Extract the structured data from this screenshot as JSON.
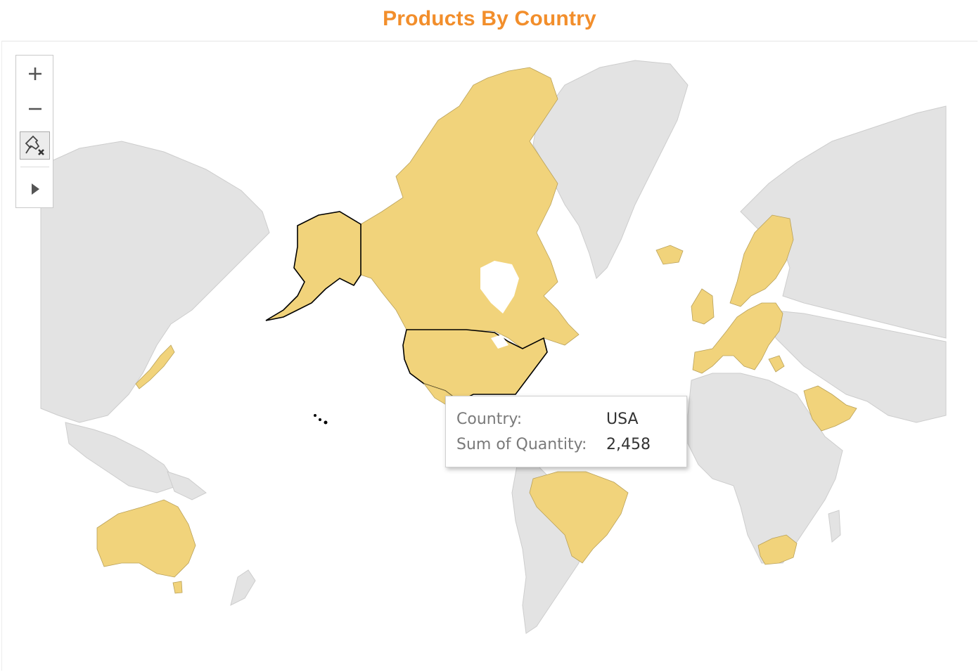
{
  "title": "Products By Country",
  "colors": {
    "title": "#f28e2b",
    "highlighted": "#f1d37b",
    "base_land": "#e3e3e3",
    "selected_outline": "#000000"
  },
  "toolbar": {
    "zoom_in_icon": "plus-icon",
    "zoom_out_icon": "minus-icon",
    "pin_icon": "unpin-map-icon",
    "expand_icon": "play-arrow-icon"
  },
  "tooltip": {
    "country_label": "Country:",
    "country_value": "USA",
    "quantity_label": "Sum of Quantity:",
    "quantity_value": "2,458"
  },
  "highlighted_countries": [
    "Canada",
    "USA",
    "Mexico",
    "Brazil",
    "Venezuela",
    "Iceland",
    "Ireland",
    "UK",
    "France",
    "Spain",
    "Portugal",
    "Belgium",
    "Netherlands",
    "Germany",
    "Denmark",
    "Norway",
    "Sweden",
    "Finland",
    "Poland",
    "Austria",
    "Switzerland",
    "Italy",
    "Greece",
    "Saudi Arabia",
    "South Africa",
    "Japan",
    "Australia"
  ],
  "selected_country": "USA"
}
